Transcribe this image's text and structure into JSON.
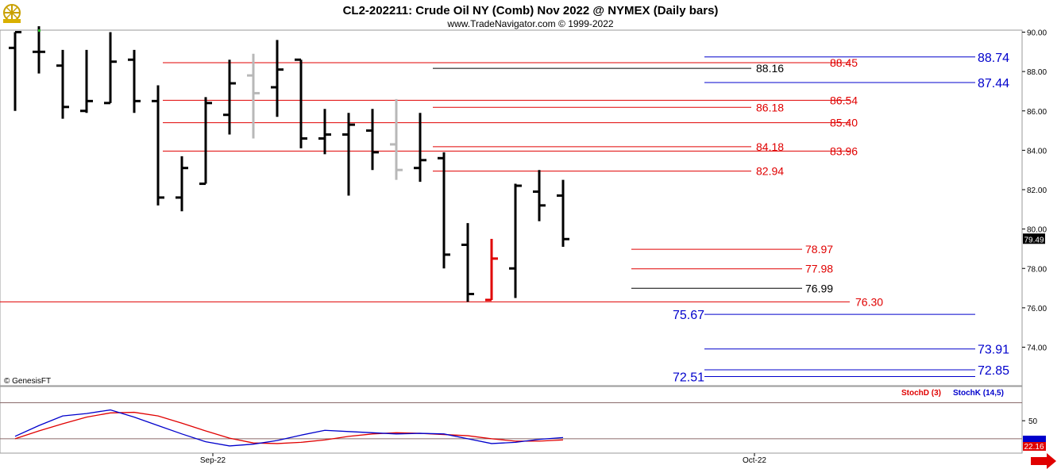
{
  "header": {
    "title": "CL2-202211:  Crude Oil NY (Comb) Nov 2022 @ NYMEX  (Daily bars)",
    "subtitle": "www.TradeNavigator.com © 1999-2022"
  },
  "footer": {
    "copyright": "© GenesisFT",
    "x_labels": [
      "Sep-22",
      "Oct-22"
    ]
  },
  "colors": {
    "bar": "#000000",
    "bar_gray": "#b8b8b8",
    "bar_red": "#e00000",
    "level_red": "#e00000",
    "level_blue": "#0000cc",
    "level_black": "#000000",
    "stoch_d": "#d40000",
    "stoch_k": "#0000cc",
    "brand": "#c8a000"
  },
  "chart_data": [
    {
      "type": "ohlc",
      "title": "CL2-202211:  Crude Oil NY (Comb) Nov 2022 @ NYMEX  (Daily bars)",
      "ylim": [
        72.0,
        90.3
      ],
      "y_ticks": [
        "90.00",
        "88.00",
        "86.00",
        "84.00",
        "82.00",
        "80.00",
        "78.00",
        "76.00",
        "74.00"
      ],
      "last_price": "79.49",
      "bars": [
        {
          "o": 89.2,
          "h": 90.0,
          "l": 86.0,
          "c": 90.0,
          "color": "black"
        },
        {
          "o": 89.0,
          "h": 90.3,
          "l": 87.9,
          "c": 89.0,
          "color": "black"
        },
        {
          "o": 88.3,
          "h": 89.1,
          "l": 85.6,
          "c": 86.2,
          "color": "black"
        },
        {
          "o": 86.0,
          "h": 89.1,
          "l": 85.9,
          "c": 86.5,
          "color": "black"
        },
        {
          "o": 86.4,
          "h": 90.0,
          "l": 86.4,
          "c": 88.5,
          "color": "black"
        },
        {
          "o": 88.6,
          "h": 89.1,
          "l": 85.9,
          "c": 86.5,
          "color": "black"
        },
        {
          "o": 86.5,
          "h": 87.3,
          "l": 81.2,
          "c": 81.6,
          "color": "black"
        },
        {
          "o": 81.6,
          "h": 83.7,
          "l": 80.9,
          "c": 83.1,
          "color": "black"
        },
        {
          "o": 82.3,
          "h": 86.7,
          "l": 82.3,
          "c": 86.4,
          "color": "black"
        },
        {
          "o": 85.8,
          "h": 88.6,
          "l": 84.8,
          "c": 87.4,
          "color": "black"
        },
        {
          "o": 87.8,
          "h": 88.9,
          "l": 84.6,
          "c": 86.9,
          "color": "gray"
        },
        {
          "o": 87.2,
          "h": 89.6,
          "l": 85.7,
          "c": 88.1,
          "color": "black"
        },
        {
          "o": 88.6,
          "h": 88.6,
          "l": 84.1,
          "c": 84.6,
          "color": "black"
        },
        {
          "o": 84.6,
          "h": 86.1,
          "l": 83.8,
          "c": 84.8,
          "color": "black"
        },
        {
          "o": 84.8,
          "h": 85.9,
          "l": 81.7,
          "c": 85.3,
          "color": "black"
        },
        {
          "o": 85.0,
          "h": 86.1,
          "l": 83.0,
          "c": 83.9,
          "color": "black"
        },
        {
          "o": 84.3,
          "h": 86.6,
          "l": 82.5,
          "c": 83.0,
          "color": "gray"
        },
        {
          "o": 83.1,
          "h": 85.9,
          "l": 82.4,
          "c": 83.5,
          "color": "black"
        },
        {
          "o": 83.6,
          "h": 83.9,
          "l": 78.0,
          "c": 78.7,
          "color": "black"
        },
        {
          "o": 79.2,
          "h": 80.3,
          "l": 76.3,
          "c": 76.7,
          "color": "black"
        },
        {
          "o": 76.4,
          "h": 79.5,
          "l": 76.4,
          "c": 78.5,
          "color": "red"
        },
        {
          "o": 78.0,
          "h": 82.3,
          "l": 76.5,
          "c": 82.2,
          "color": "black"
        },
        {
          "o": 81.9,
          "h": 83.0,
          "l": 80.4,
          "c": 81.2,
          "color": "black"
        },
        {
          "o": 81.7,
          "h": 82.5,
          "l": 79.1,
          "c": 79.49,
          "color": "black"
        }
      ],
      "levels": [
        {
          "value": 88.45,
          "label": "88.45",
          "color": "red"
        },
        {
          "value": 86.54,
          "label": "86.54",
          "color": "red"
        },
        {
          "value": 85.4,
          "label": "85.40",
          "color": "red"
        },
        {
          "value": 83.96,
          "label": "83.96",
          "color": "red"
        },
        {
          "value": 76.3,
          "label": "76.30",
          "color": "red"
        },
        {
          "value": 88.16,
          "label": "88.16",
          "color": "black"
        },
        {
          "value": 86.18,
          "label": "86.18",
          "color": "red"
        },
        {
          "value": 84.18,
          "label": "84.18",
          "color": "red"
        },
        {
          "value": 82.94,
          "label": "82.94",
          "color": "red"
        },
        {
          "value": 78.97,
          "label": "78.97",
          "color": "red"
        },
        {
          "value": 77.98,
          "label": "77.98",
          "color": "red"
        },
        {
          "value": 76.99,
          "label": "76.99",
          "color": "black"
        },
        {
          "value": 88.74,
          "label": "88.74",
          "color": "blue"
        },
        {
          "value": 87.44,
          "label": "87.44",
          "color": "blue"
        },
        {
          "value": 75.67,
          "label": "75.67",
          "color": "blue"
        },
        {
          "value": 73.91,
          "label": "73.91",
          "color": "blue"
        },
        {
          "value": 72.85,
          "label": "72.85",
          "color": "blue"
        },
        {
          "value": 72.51,
          "label": "72.51",
          "color": "blue"
        }
      ]
    },
    {
      "type": "line",
      "ylim": [
        0,
        100
      ],
      "y_ticks": [
        "50"
      ],
      "reference_lines": [
        80,
        20
      ],
      "last_value": "22.16",
      "series": [
        {
          "name": "StochD (3)",
          "color": "red",
          "values": [
            20,
            33,
            45,
            56,
            63,
            64,
            58,
            46,
            33,
            21,
            13,
            12,
            14,
            18,
            24,
            28,
            30,
            29,
            27,
            25,
            20,
            16,
            16,
            18
          ]
        },
        {
          "name": "StochK (14,5)",
          "color": "blue",
          "values": [
            24,
            42,
            58,
            62,
            68,
            56,
            42,
            28,
            15,
            8,
            11,
            17,
            26,
            34,
            32,
            30,
            28,
            29,
            28,
            20,
            12,
            14,
            19,
            22
          ]
        }
      ]
    }
  ]
}
